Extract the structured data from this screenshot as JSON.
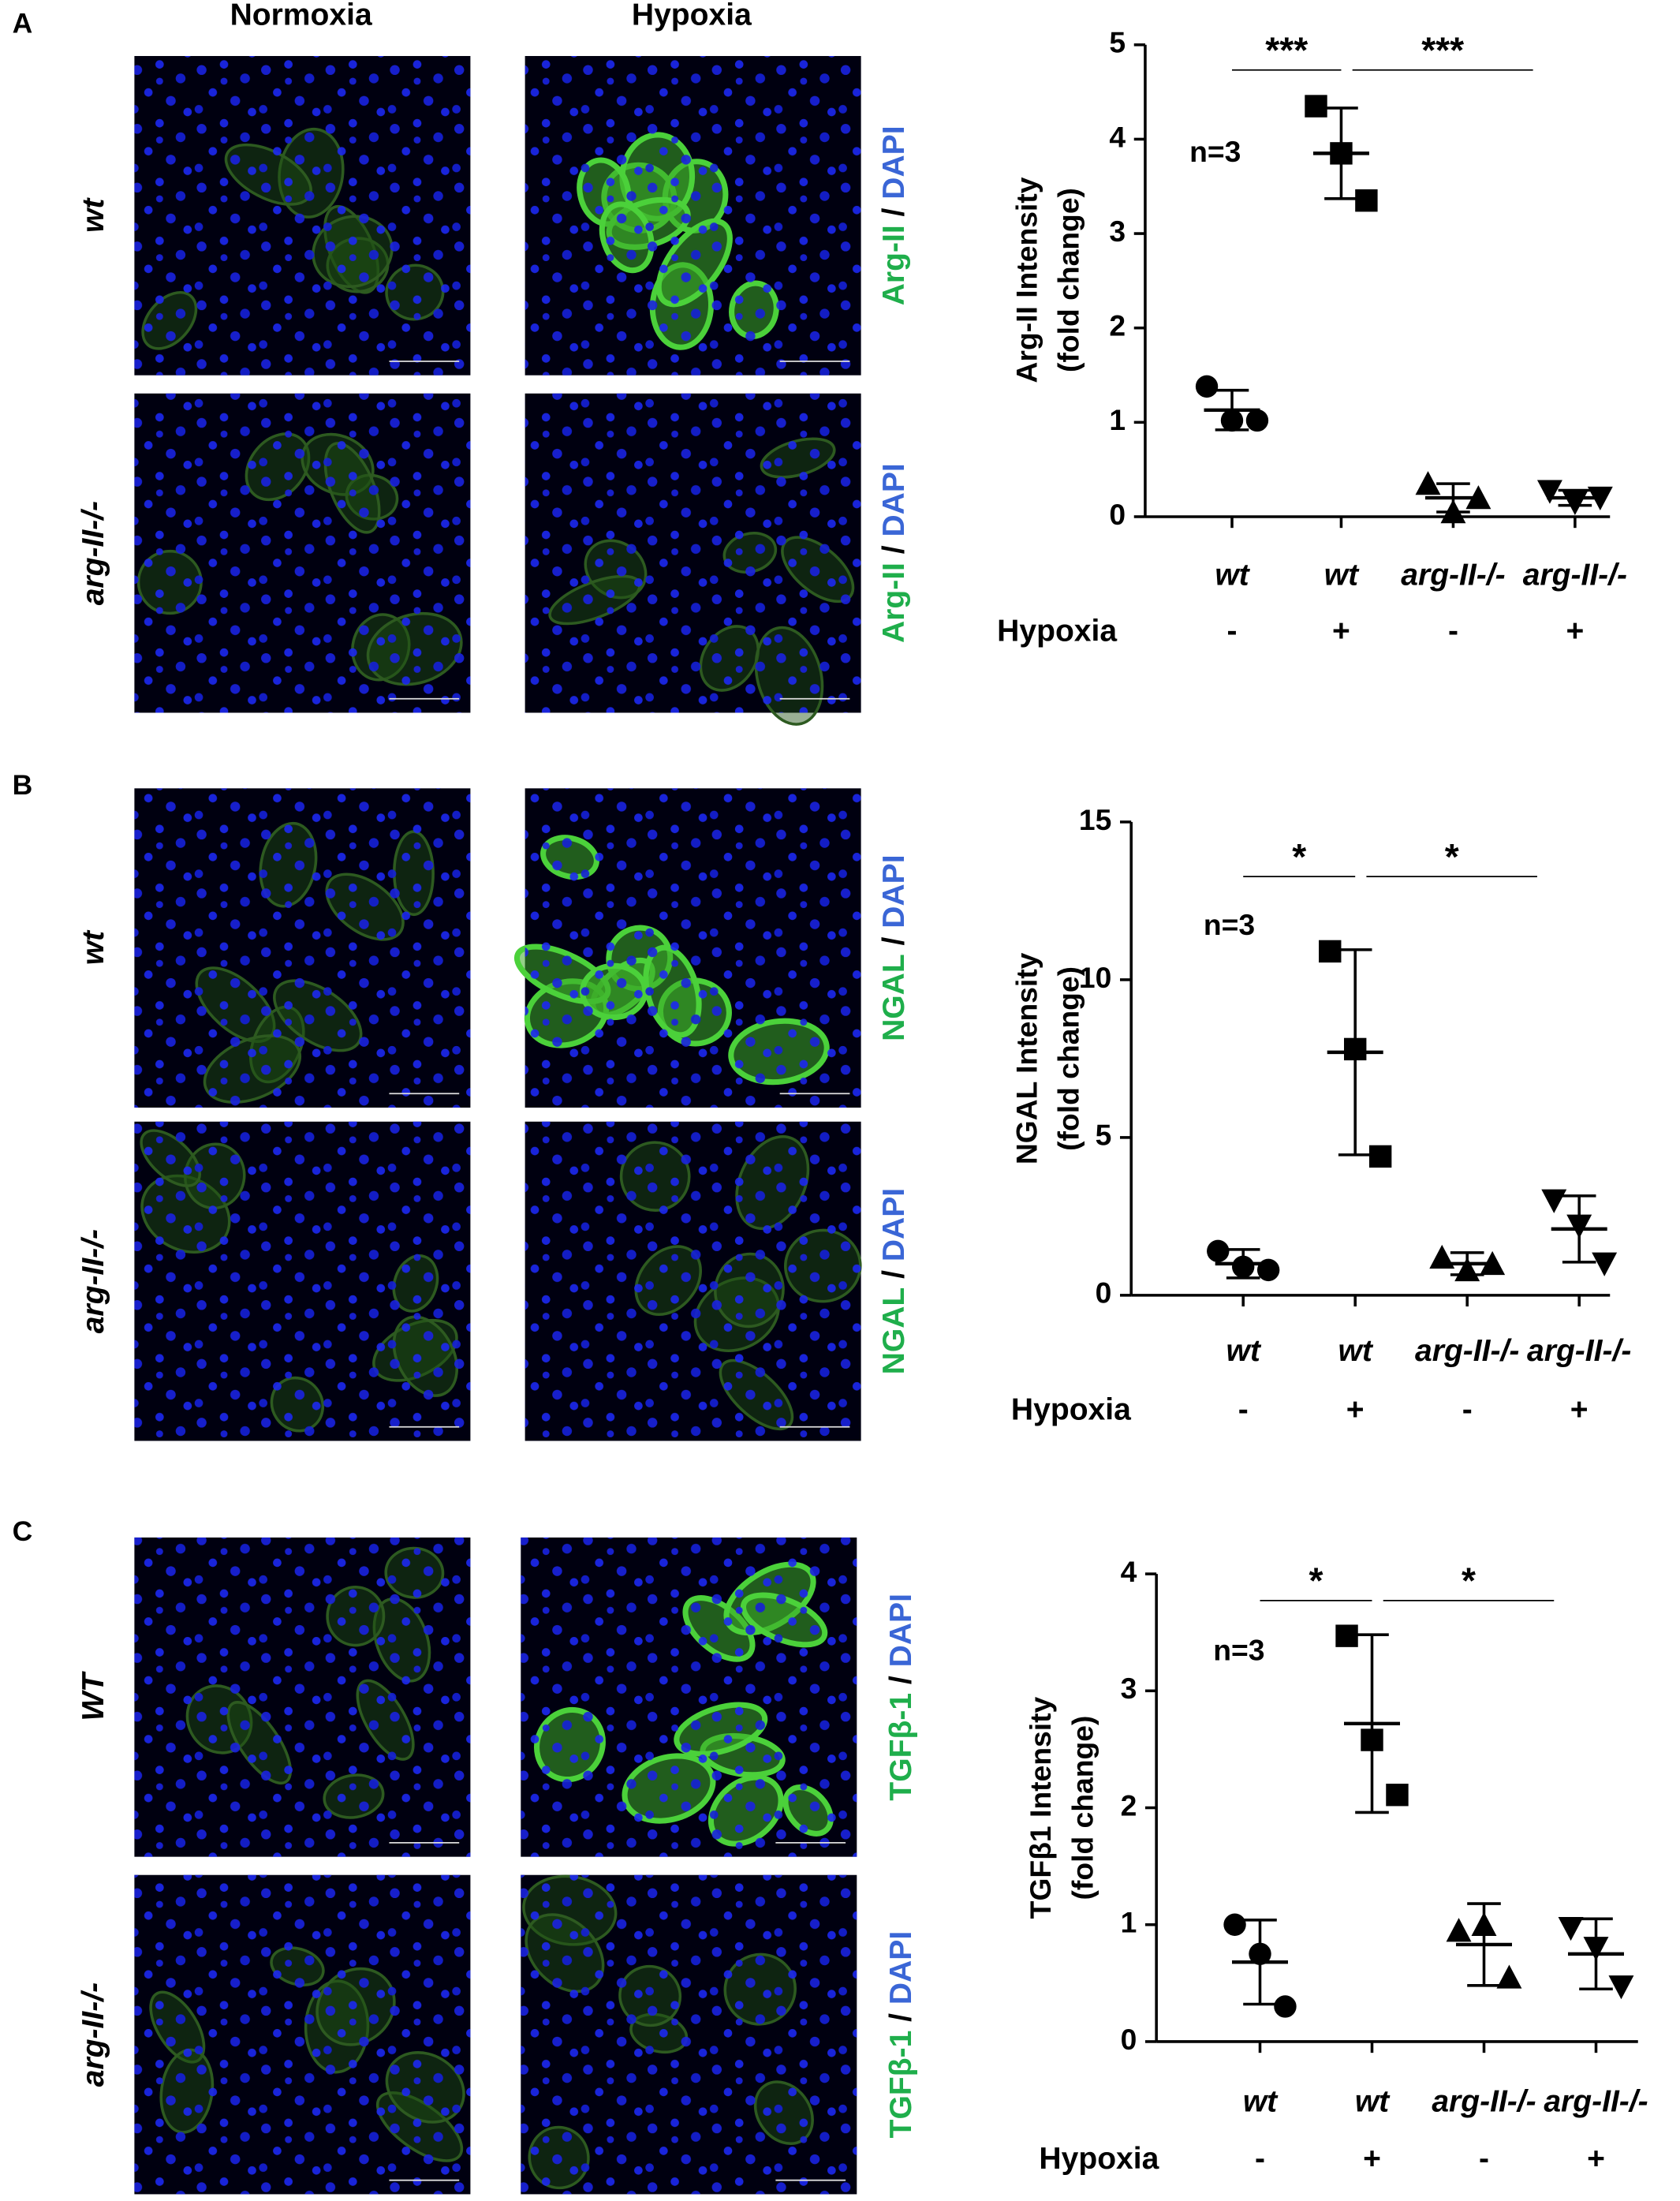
{
  "column_headers": [
    "Normoxia",
    "Hypoxia"
  ],
  "panels": [
    {
      "letter": "A",
      "row_labels": [
        "wt",
        "arg-II-/-"
      ],
      "stain": [
        "Arg-II",
        "/",
        "DAPI"
      ]
    },
    {
      "letter": "B",
      "row_labels": [
        "wt",
        "arg-II-/-"
      ],
      "stain": [
        "NGAL",
        "/",
        "DAPI"
      ]
    },
    {
      "letter": "C",
      "row_labels": [
        "WT",
        "arg-II-/-"
      ],
      "stain": [
        "TGFβ-1",
        "/",
        "DAPI"
      ]
    }
  ],
  "chart_data": [
    {
      "type": "scatter",
      "y_label": [
        "Arg-II Intensity",
        "(fold change)"
      ],
      "ylim": [
        0,
        5
      ],
      "yticks": [
        0,
        1,
        2,
        3,
        4,
        5
      ],
      "categories": [
        "wt",
        "wt",
        "arg-II-/-",
        "arg-II-/-"
      ],
      "row_label": "Hypoxia",
      "conditions": [
        "-",
        "+",
        "-",
        "+"
      ],
      "annotation": "n=3",
      "significance": [
        "***",
        "***"
      ],
      "markers": [
        "circle",
        "square",
        "triangle",
        "triangle-down"
      ],
      "color": "#000000",
      "points": [
        [
          1.38,
          1.02,
          1.02
        ],
        [
          4.35,
          3.85,
          3.35
        ],
        [
          0.35,
          0.05,
          0.2
        ],
        [
          0.27,
          0.15,
          0.2
        ]
      ],
      "means": [
        1.13,
        3.85,
        0.2,
        0.2
      ],
      "errors": [
        0.21,
        0.48,
        0.15,
        0.08
      ]
    },
    {
      "type": "scatter",
      "y_label": [
        "NGAL Intensity",
        "(fold change)"
      ],
      "ylim": [
        0,
        15
      ],
      "yticks": [
        0,
        5,
        10,
        15
      ],
      "categories": [
        "wt",
        "wt",
        "arg-II-/-",
        "arg-II-/-"
      ],
      "row_label": "Hypoxia",
      "conditions": [
        "-",
        "+",
        "-",
        "+"
      ],
      "annotation": "n=3",
      "significance": [
        "*",
        "*"
      ],
      "markers": [
        "circle",
        "square",
        "triangle",
        "triangle-down"
      ],
      "color": "#000000",
      "points": [
        [
          1.4,
          0.9,
          0.8
        ],
        [
          10.9,
          7.8,
          4.4
        ],
        [
          1.2,
          0.8,
          1.0
        ],
        [
          3.0,
          2.2,
          1.0
        ]
      ],
      "means": [
        1.0,
        7.7,
        1.0,
        2.1
      ],
      "errors": [
        0.45,
        3.25,
        0.35,
        1.05
      ]
    },
    {
      "type": "scatter",
      "y_label": [
        "TGFβ1 Intensity",
        "(fold change)"
      ],
      "ylim": [
        0,
        4
      ],
      "yticks": [
        0,
        1,
        2,
        3,
        4
      ],
      "categories": [
        "wt",
        "wt",
        "arg-II-/-",
        "arg-II-/-"
      ],
      "row_label": "Hypoxia",
      "conditions": [
        "-",
        "+",
        "-",
        "+"
      ],
      "annotation": "n=3",
      "significance": [
        "*",
        "*"
      ],
      "markers": [
        "circle",
        "square",
        "triangle",
        "triangle-down"
      ],
      "color": "#000000",
      "points": [
        [
          1.0,
          0.75,
          0.3
        ],
        [
          3.47,
          2.58,
          2.11
        ],
        [
          0.95,
          1.0,
          0.55
        ],
        [
          0.97,
          0.8,
          0.47
        ]
      ],
      "means": [
        0.68,
        2.72,
        0.83,
        0.75
      ],
      "errors": [
        0.36,
        0.76,
        0.35,
        0.3
      ]
    }
  ]
}
